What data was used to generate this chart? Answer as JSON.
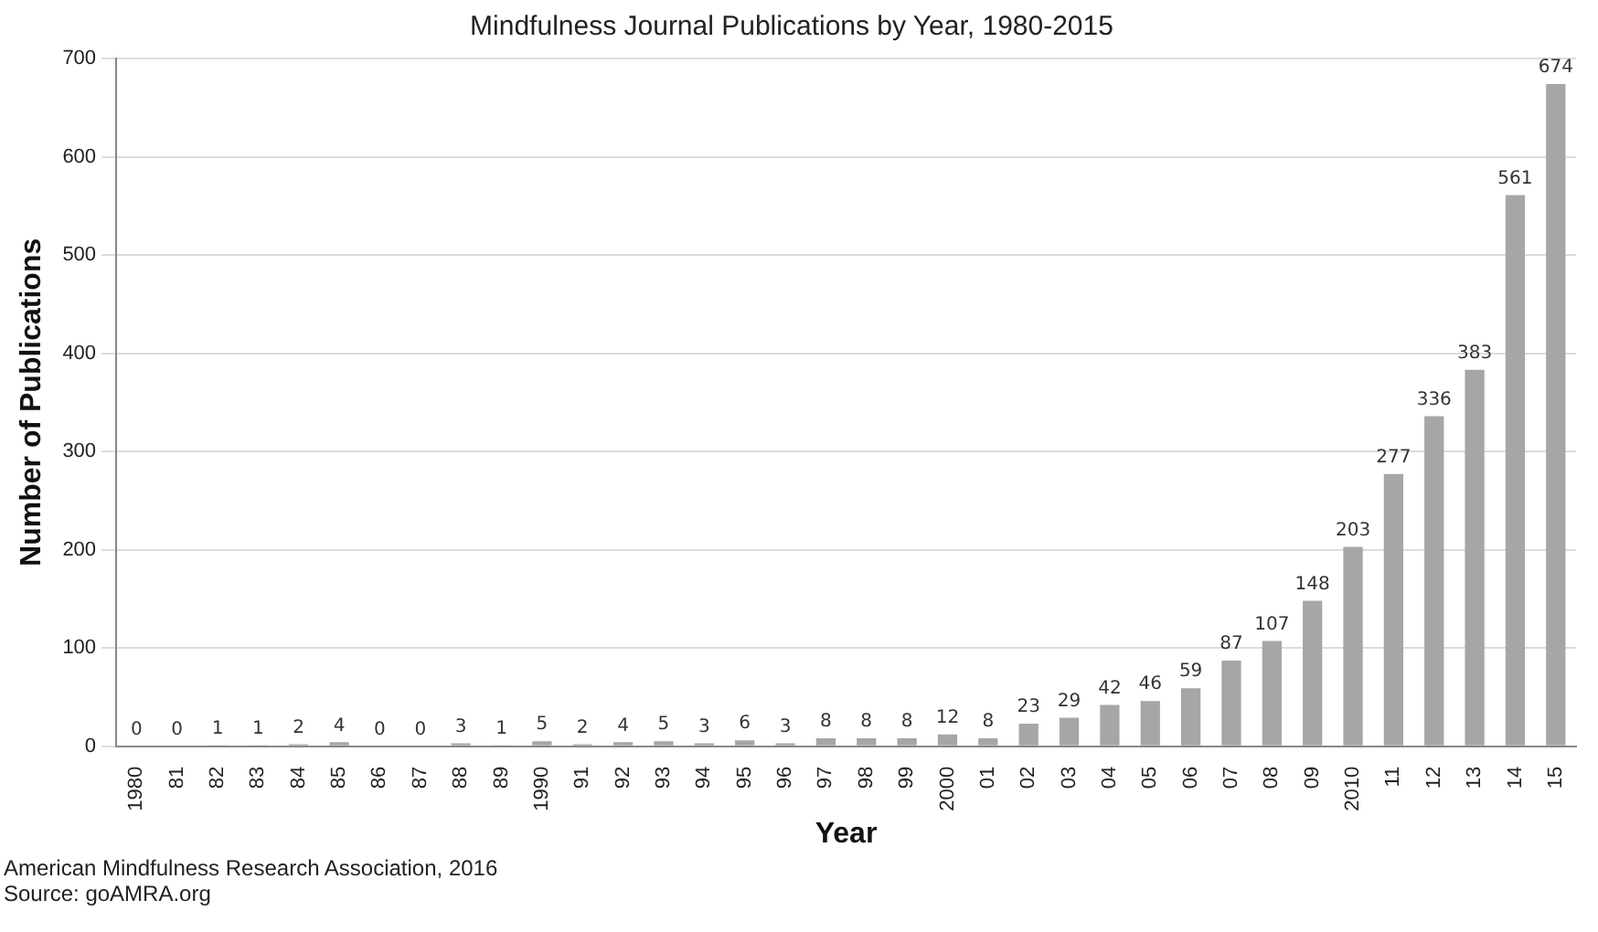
{
  "chart_data": {
    "type": "bar",
    "title": "Mindfulness Journal Publications by Year, 1980-2015",
    "xlabel": "Year",
    "ylabel": "Number of Publications",
    "categories": [
      "1980",
      "81",
      "82",
      "83",
      "84",
      "85",
      "86",
      "87",
      "88",
      "89",
      "1990",
      "91",
      "92",
      "93",
      "94",
      "95",
      "96",
      "97",
      "98",
      "99",
      "2000",
      "01",
      "02",
      "03",
      "04",
      "05",
      "06",
      "07",
      "08",
      "09",
      "2010",
      "11",
      "12",
      "13",
      "14",
      "15"
    ],
    "values": [
      0,
      0,
      1,
      1,
      2,
      4,
      0,
      0,
      3,
      1,
      5,
      2,
      4,
      5,
      3,
      6,
      3,
      8,
      8,
      8,
      12,
      8,
      23,
      29,
      42,
      46,
      59,
      87,
      107,
      148,
      203,
      277,
      336,
      383,
      561,
      674
    ],
    "color": "#a6a6a6",
    "ylim": [
      0,
      700
    ],
    "yticks": [
      0,
      100,
      200,
      300,
      400,
      500,
      600,
      700
    ],
    "grid": "y",
    "data_labels": true,
    "legend": false,
    "annotations": [
      "American Mindfulness Research Association, 2016",
      "Source: goAMRA.org"
    ]
  }
}
